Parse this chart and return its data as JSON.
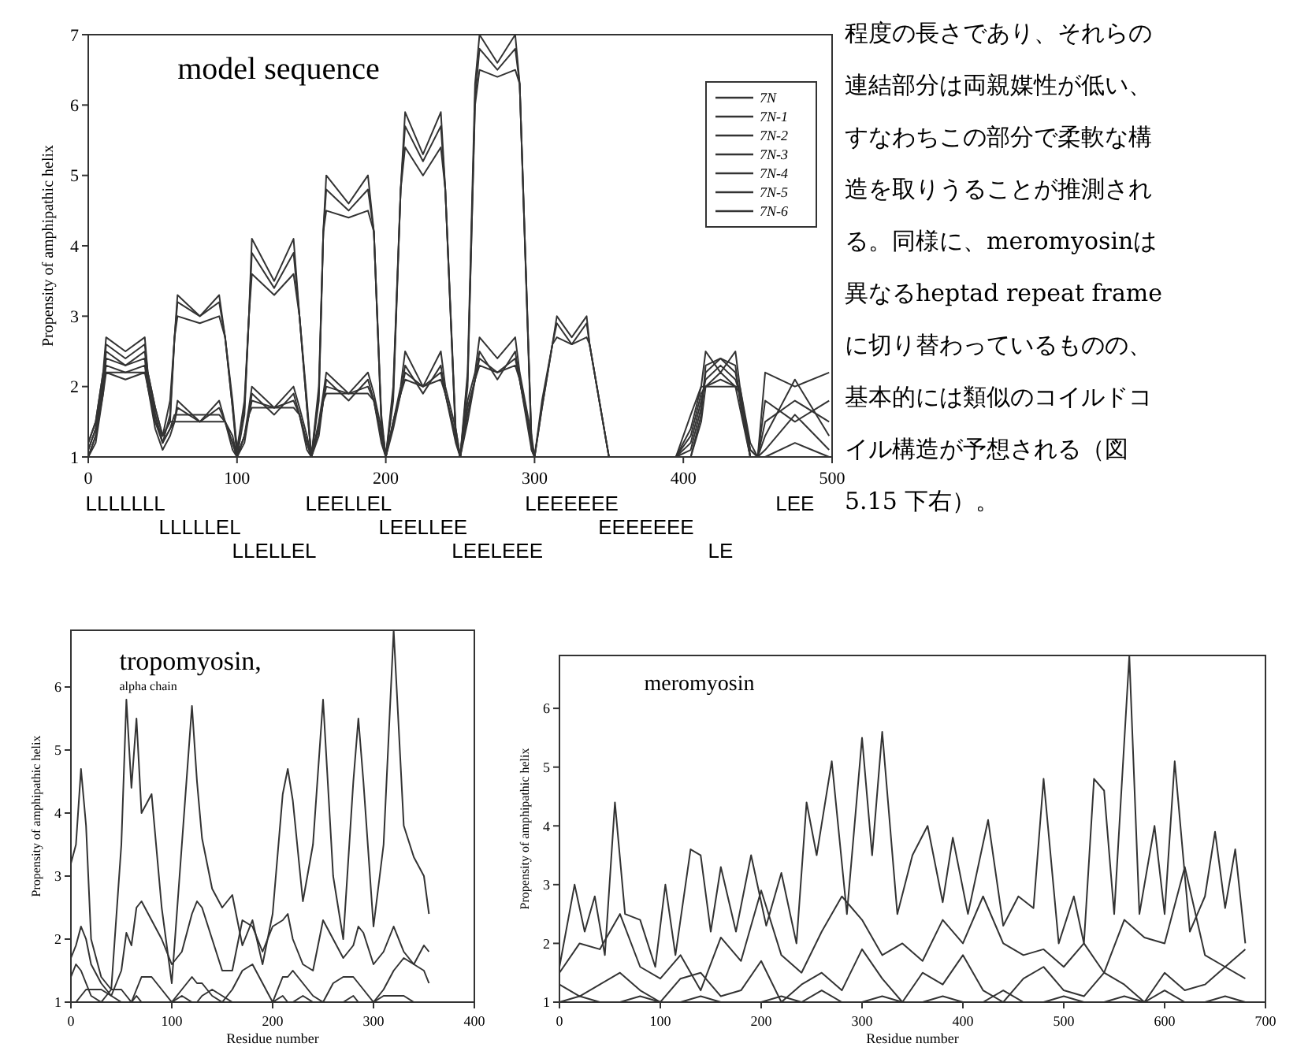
{
  "chart_data": [
    {
      "type": "line",
      "title": "model sequence",
      "ylabel": "Propensity of amphipathic helix",
      "xlim": [
        0,
        500
      ],
      "xticks": [
        0,
        100,
        200,
        300,
        400,
        500
      ],
      "ylim": [
        1,
        7
      ],
      "yticks": [
        1,
        2,
        3,
        4,
        5,
        6,
        7
      ],
      "grid": false,
      "legend": "top right",
      "marker": "none",
      "line_style": "solid",
      "x": [
        0,
        5,
        10,
        12,
        25,
        38,
        40,
        45,
        50,
        55,
        58,
        60,
        75,
        88,
        92,
        97,
        100,
        105,
        108,
        110,
        125,
        138,
        142,
        147,
        150,
        155,
        158,
        160,
        175,
        188,
        192,
        197,
        200,
        205,
        210,
        213,
        225,
        237,
        240,
        247,
        250,
        255,
        260,
        263,
        275,
        287,
        290,
        298,
        300,
        305,
        312,
        315,
        325,
        335,
        337,
        350,
        375,
        395,
        405,
        412,
        415,
        425,
        435,
        438,
        445,
        450,
        455,
        475,
        498
      ],
      "annotations": [
        "LLLLLLL",
        "LLLLLEL",
        "LLELLEL",
        "LEELLEL",
        "LEELLEE",
        "LEELEEE",
        "LEEEEEE",
        "EEEEEEE",
        "LE",
        "LEE"
      ],
      "series": [
        {
          "name": "7N",
          "color": "#333333",
          "values": [
            1.2,
            1.5,
            2.2,
            2.7,
            2.5,
            2.7,
            2.2,
            1.7,
            1.3,
            1.8,
            2.7,
            3.3,
            3.0,
            3.3,
            2.7,
            1.8,
            1.1,
            1.8,
            3.0,
            4.1,
            3.5,
            4.1,
            3.0,
            1.8,
            1.0,
            2.0,
            4.2,
            5.0,
            4.6,
            5.0,
            4.2,
            1.6,
            1.0,
            2.0,
            4.8,
            5.9,
            5.3,
            5.9,
            4.8,
            1.4,
            1.0,
            2.2,
            6.3,
            7.0,
            6.6,
            7.0,
            6.3,
            1.2,
            1.0,
            1.8,
            2.6,
            3.0,
            2.7,
            3.0,
            2.6,
            1.0,
            1.0,
            1.0,
            1.6,
            2.0,
            2.5,
            2.2,
            2.5,
            2.0,
            1.1,
            1.0,
            2.2,
            2.0,
            2.2
          ]
        },
        {
          "name": "7N-1",
          "color": "#333333",
          "values": [
            1.2,
            1.5,
            2.2,
            2.2,
            2.2,
            2.2,
            2.2,
            1.7,
            1.3,
            1.5,
            1.5,
            1.8,
            1.5,
            1.8,
            1.5,
            1.3,
            1.0,
            1.3,
            1.7,
            2.0,
            1.7,
            2.0,
            1.7,
            1.3,
            1.0,
            1.5,
            1.9,
            2.2,
            1.9,
            2.2,
            1.9,
            1.4,
            1.0,
            1.5,
            2.0,
            2.5,
            2.0,
            2.5,
            2.0,
            1.4,
            1.0,
            1.8,
            2.2,
            2.7,
            2.4,
            2.7,
            2.2,
            1.3,
            1.0,
            1.0,
            1.0,
            1.0,
            1.0,
            1.0,
            1.0,
            1.0,
            1.0,
            1.0,
            1.4,
            2.0,
            2.0,
            2.0,
            2.0,
            2.0,
            1.2,
            1.0,
            1.8,
            1.5,
            1.8
          ]
        },
        {
          "name": "7N-2",
          "color": "#333333",
          "values": [
            1.1,
            1.4,
            2.0,
            2.3,
            2.2,
            2.3,
            2.0,
            1.6,
            1.2,
            1.4,
            1.5,
            1.5,
            1.5,
            1.5,
            1.5,
            1.2,
            1.0,
            1.3,
            1.6,
            1.7,
            1.7,
            1.7,
            1.6,
            1.2,
            1.0,
            1.4,
            1.8,
            1.9,
            1.9,
            1.9,
            1.8,
            1.3,
            1.0,
            1.5,
            1.9,
            2.1,
            2.0,
            2.1,
            1.9,
            1.3,
            1.0,
            1.7,
            2.1,
            2.3,
            2.2,
            2.3,
            2.1,
            1.2,
            1.0,
            1.0,
            1.0,
            1.0,
            1.0,
            1.0,
            1.0,
            1.0,
            1.0,
            1.0,
            1.3,
            1.9,
            2.0,
            2.2,
            2.0,
            1.9,
            1.1,
            1.0,
            1.5,
            1.8,
            1.5
          ]
        },
        {
          "name": "7N-3",
          "color": "#333333",
          "values": [
            1.0,
            1.3,
            1.9,
            2.4,
            2.3,
            2.4,
            2.0,
            1.5,
            1.2,
            1.4,
            1.6,
            1.6,
            1.6,
            1.6,
            1.5,
            1.2,
            1.0,
            1.3,
            1.6,
            1.8,
            1.7,
            1.8,
            1.6,
            1.2,
            1.0,
            1.4,
            1.8,
            2.0,
            1.9,
            2.0,
            1.8,
            1.3,
            1.0,
            1.5,
            1.9,
            2.2,
            2.0,
            2.2,
            1.9,
            1.3,
            1.0,
            1.6,
            2.1,
            2.4,
            2.2,
            2.4,
            2.1,
            1.2,
            1.0,
            1.0,
            1.0,
            1.0,
            1.0,
            1.0,
            1.0,
            1.0,
            1.0,
            1.0,
            1.2,
            1.8,
            2.1,
            2.3,
            2.1,
            1.9,
            1.0,
            1.0,
            1.3,
            2.1,
            1.3
          ]
        },
        {
          "name": "7N-4",
          "color": "#333333",
          "values": [
            1.0,
            1.3,
            2.0,
            2.5,
            2.3,
            2.5,
            2.1,
            1.5,
            1.3,
            1.5,
            2.7,
            3.0,
            2.9,
            3.0,
            2.7,
            1.7,
            1.1,
            1.7,
            3.0,
            3.6,
            3.3,
            3.6,
            3.0,
            1.7,
            1.0,
            1.9,
            4.2,
            4.5,
            4.4,
            4.5,
            4.2,
            1.5,
            1.0,
            1.9,
            4.8,
            5.4,
            5.0,
            5.4,
            4.8,
            1.3,
            1.0,
            2.1,
            6.0,
            6.5,
            6.4,
            6.5,
            6.3,
            1.2,
            1.0,
            1.7,
            2.6,
            2.7,
            2.6,
            2.7,
            2.6,
            1.0,
            1.0,
            1.0,
            1.1,
            1.7,
            2.2,
            2.4,
            2.2,
            1.9,
            1.0,
            1.0,
            1.1,
            1.6,
            1.1
          ]
        },
        {
          "name": "7N-5",
          "color": "#333333",
          "values": [
            1.1,
            1.4,
            2.1,
            2.6,
            2.4,
            2.6,
            2.2,
            1.6,
            1.2,
            1.6,
            2.7,
            3.2,
            3.0,
            3.2,
            2.7,
            1.7,
            1.0,
            1.6,
            3.0,
            3.9,
            3.4,
            3.9,
            3.0,
            1.7,
            1.0,
            1.8,
            4.2,
            4.8,
            4.5,
            4.8,
            4.2,
            1.5,
            1.0,
            1.8,
            4.8,
            5.7,
            5.2,
            5.7,
            4.8,
            1.3,
            1.0,
            2.0,
            6.1,
            6.8,
            6.5,
            6.8,
            6.3,
            1.1,
            1.0,
            1.7,
            2.6,
            2.9,
            2.6,
            2.9,
            2.6,
            1.0,
            1.0,
            1.0,
            1.0,
            1.6,
            2.3,
            2.4,
            2.3,
            1.8,
            1.0,
            1.0,
            1.0,
            1.2,
            1.0
          ]
        },
        {
          "name": "7N-6",
          "color": "#333333",
          "values": [
            1.0,
            1.2,
            1.9,
            2.2,
            2.1,
            2.2,
            2.0,
            1.4,
            1.1,
            1.3,
            1.5,
            1.7,
            1.5,
            1.7,
            1.5,
            1.1,
            1.0,
            1.2,
            1.6,
            1.9,
            1.6,
            1.9,
            1.6,
            1.1,
            1.0,
            1.3,
            1.8,
            2.1,
            1.8,
            2.1,
            1.8,
            1.2,
            1.0,
            1.4,
            1.9,
            2.3,
            1.9,
            2.3,
            1.9,
            1.2,
            1.0,
            1.5,
            2.1,
            2.5,
            2.1,
            2.5,
            2.1,
            1.1,
            1.0,
            1.0,
            1.0,
            1.0,
            1.0,
            1.0,
            1.0,
            1.0,
            1.0,
            1.0,
            1.0,
            1.5,
            2.0,
            2.1,
            2.0,
            1.7,
            1.0,
            1.0,
            1.0,
            1.0,
            1.0
          ]
        }
      ]
    },
    {
      "type": "line",
      "title": "tropomyosin,",
      "subtitle": "alpha chain",
      "xlabel": "Residue number",
      "ylabel": "Propensity of amphipathic helix",
      "xlim": [
        0,
        400
      ],
      "xticks": [
        0,
        100,
        200,
        300,
        400
      ],
      "ylim": [
        1,
        6.9
      ],
      "yticks": [
        1,
        2,
        3,
        4,
        5,
        6
      ],
      "grid": false,
      "marker": "none",
      "line_style": "solid",
      "x": [
        0,
        5,
        10,
        15,
        20,
        30,
        40,
        50,
        55,
        60,
        65,
        70,
        80,
        90,
        100,
        110,
        120,
        125,
        130,
        140,
        150,
        160,
        170,
        180,
        190,
        200,
        210,
        215,
        220,
        230,
        240,
        250,
        260,
        270,
        280,
        285,
        290,
        300,
        310,
        320,
        330,
        340,
        350,
        355
      ],
      "series": [
        {
          "color": "#333333",
          "values": [
            3.2,
            3.5,
            4.7,
            3.8,
            2.0,
            1.4,
            1.2,
            3.5,
            5.8,
            4.4,
            5.5,
            4.0,
            4.3,
            2.5,
            1.3,
            3.5,
            5.7,
            4.5,
            3.6,
            2.8,
            2.5,
            2.7,
            1.9,
            2.3,
            1.6,
            2.4,
            4.3,
            4.7,
            4.2,
            2.6,
            3.5,
            5.8,
            3.0,
            2.0,
            4.5,
            5.5,
            4.5,
            2.2,
            3.5,
            6.9,
            3.8,
            3.3,
            3.0,
            2.4
          ]
        },
        {
          "color": "#333333",
          "values": [
            1.7,
            1.9,
            2.2,
            2.0,
            1.6,
            1.3,
            1.1,
            1.5,
            2.1,
            1.9,
            2.5,
            2.6,
            2.3,
            2.0,
            1.6,
            1.8,
            2.4,
            2.6,
            2.5,
            2.0,
            1.5,
            1.5,
            2.3,
            2.2,
            1.8,
            2.2,
            2.3,
            2.4,
            2.0,
            1.6,
            1.5,
            2.3,
            2.0,
            1.7,
            1.9,
            2.2,
            2.1,
            1.6,
            1.8,
            2.2,
            1.8,
            1.6,
            1.9,
            1.8
          ]
        },
        {
          "color": "#333333",
          "values": [
            1.4,
            1.6,
            1.5,
            1.3,
            1.1,
            1.0,
            1.2,
            1.2,
            1.1,
            1.0,
            1.2,
            1.4,
            1.4,
            1.2,
            1.0,
            1.2,
            1.4,
            1.3,
            1.3,
            1.1,
            1.0,
            1.2,
            1.5,
            1.6,
            1.3,
            1.0,
            1.4,
            1.4,
            1.5,
            1.3,
            1.1,
            1.0,
            1.3,
            1.4,
            1.4,
            1.3,
            1.2,
            1.0,
            1.2,
            1.5,
            1.7,
            1.6,
            1.5,
            1.3
          ]
        },
        {
          "color": "#333333",
          "values": [
            1.0,
            1.0,
            1.1,
            1.2,
            1.2,
            1.2,
            1.1,
            1.0,
            1.0,
            1.0,
            1.1,
            1.0,
            1.0,
            1.0,
            1.0,
            1.1,
            1.0,
            1.0,
            1.1,
            1.2,
            1.1,
            1.0,
            1.0,
            1.0,
            1.0,
            1.0,
            1.1,
            1.0,
            1.0,
            1.1,
            1.0,
            1.0,
            1.0,
            1.0,
            1.1,
            1.0,
            1.0,
            1.0,
            1.1,
            1.1,
            1.1,
            1.0,
            1.0,
            1.0
          ]
        }
      ]
    },
    {
      "type": "line",
      "title": "meromyosin",
      "xlabel": "Residue number",
      "ylabel": "Propensity of amphipathic helix",
      "xlim": [
        0,
        700
      ],
      "xticks": [
        0,
        100,
        200,
        300,
        400,
        500,
        600,
        700
      ],
      "ylim": [
        1,
        6.9
      ],
      "yticks": [
        1,
        2,
        3,
        4,
        5,
        6
      ],
      "grid": false,
      "marker": "none",
      "line_style": "solid",
      "series": [
        {
          "color": "#333333",
          "x": [
            0,
            15,
            25,
            35,
            45,
            55,
            65,
            80,
            95,
            105,
            115,
            130,
            140,
            150,
            160,
            175,
            190,
            205,
            220,
            235,
            245,
            255,
            270,
            285,
            300,
            310,
            320,
            335,
            350,
            365,
            380,
            390,
            405,
            425,
            440,
            455,
            470,
            480,
            495,
            510,
            520,
            530,
            540,
            550,
            565,
            575,
            590,
            600,
            610,
            625,
            640,
            650,
            660,
            670,
            680
          ],
          "values": [
            1.6,
            3.0,
            2.2,
            2.8,
            1.8,
            4.4,
            2.5,
            2.4,
            1.6,
            3.0,
            1.8,
            3.6,
            3.5,
            2.2,
            3.3,
            2.2,
            3.5,
            2.3,
            3.2,
            2.0,
            4.4,
            3.5,
            5.1,
            2.5,
            5.5,
            3.5,
            5.6,
            2.5,
            3.5,
            4.0,
            2.7,
            3.8,
            2.5,
            4.1,
            2.3,
            2.8,
            2.6,
            4.8,
            2.0,
            2.8,
            2.0,
            4.8,
            4.6,
            2.5,
            6.9,
            2.5,
            4.0,
            2.5,
            5.1,
            2.2,
            2.8,
            3.9,
            2.6,
            3.6,
            2.0
          ]
        },
        {
          "color": "#333333",
          "x": [
            0,
            20,
            40,
            60,
            80,
            100,
            120,
            140,
            160,
            180,
            200,
            220,
            240,
            260,
            280,
            300,
            320,
            340,
            360,
            380,
            400,
            420,
            440,
            460,
            480,
            500,
            520,
            540,
            560,
            580,
            600,
            620,
            640,
            660,
            680
          ],
          "values": [
            1.5,
            2.0,
            1.9,
            2.5,
            1.6,
            1.4,
            1.8,
            1.2,
            2.1,
            1.7,
            2.9,
            1.8,
            1.5,
            2.2,
            2.8,
            2.4,
            1.8,
            2.0,
            1.7,
            2.4,
            2.0,
            2.8,
            2.0,
            1.8,
            1.9,
            1.6,
            2.0,
            1.5,
            2.4,
            2.1,
            2.0,
            3.3,
            1.8,
            1.6,
            1.9
          ]
        },
        {
          "color": "#333333",
          "x": [
            0,
            20,
            40,
            60,
            80,
            100,
            120,
            140,
            160,
            180,
            200,
            220,
            240,
            260,
            280,
            300,
            320,
            340,
            360,
            380,
            400,
            420,
            440,
            460,
            480,
            500,
            520,
            540,
            560,
            580,
            600,
            620,
            640,
            660,
            680
          ],
          "values": [
            1.3,
            1.1,
            1.3,
            1.5,
            1.2,
            1.0,
            1.4,
            1.5,
            1.1,
            1.2,
            1.7,
            1.0,
            1.3,
            1.5,
            1.2,
            1.9,
            1.4,
            1.0,
            1.5,
            1.3,
            1.8,
            1.2,
            1.0,
            1.4,
            1.6,
            1.2,
            1.1,
            1.5,
            1.3,
            1.0,
            1.5,
            1.2,
            1.3,
            1.6,
            1.4
          ]
        },
        {
          "color": "#333333",
          "x": [
            0,
            20,
            40,
            60,
            80,
            100,
            120,
            140,
            160,
            180,
            200,
            220,
            240,
            260,
            280,
            300,
            320,
            340,
            360,
            380,
            400,
            420,
            440,
            460,
            480,
            500,
            520,
            540,
            560,
            580,
            600,
            620,
            640,
            660,
            680
          ],
          "values": [
            1.0,
            1.1,
            1.0,
            1.0,
            1.1,
            1.0,
            1.0,
            1.1,
            1.0,
            1.0,
            1.0,
            1.1,
            1.0,
            1.2,
            1.0,
            1.0,
            1.1,
            1.0,
            1.0,
            1.1,
            1.0,
            1.0,
            1.2,
            1.0,
            1.0,
            1.1,
            1.0,
            1.0,
            1.1,
            1.0,
            1.2,
            1.0,
            1.0,
            1.1,
            1.0
          ]
        }
      ]
    },
    {
      "type": "other",
      "annotations": [
        "程度の長さであり、それらの",
        "連結部分は両親媒性が低い、",
        "すなわちこの部分で柔軟な構",
        "造を取りうることが推測され",
        "る。同様に、meromyosinは",
        "異なるheptad repeat frame",
        "に切り替わっているものの、",
        "基本的には類似のコイルドコ",
        "イル構造が予想される（図",
        "5.15 下右）。"
      ]
    }
  ]
}
